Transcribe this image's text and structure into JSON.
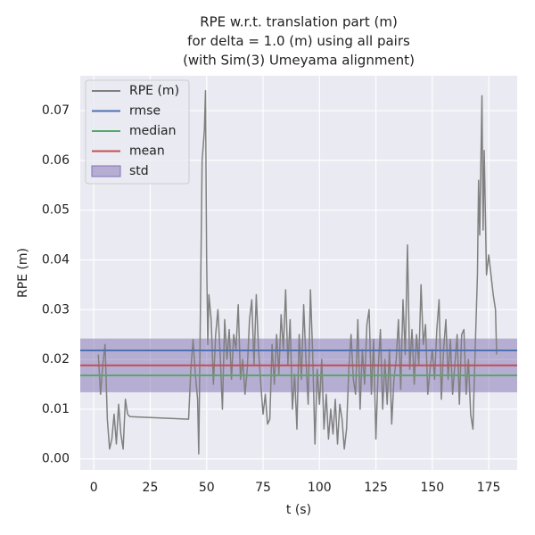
{
  "chart_data": {
    "type": "line",
    "title": [
      "RPE w.r.t. translation part (m)",
      "for delta = 1.0 (m) using all pairs",
      "(with Sim(3) Umeyama alignment)"
    ],
    "xlabel": "t (s)",
    "ylabel": "RPE (m)",
    "xlim": [
      -6,
      187.6
    ],
    "ylim": [
      -0.0022,
      0.077
    ],
    "xticks": [
      0,
      25,
      50,
      75,
      100,
      125,
      150,
      175
    ],
    "yticks": [
      {
        "value": 0,
        "label": "0.00"
      },
      0.01,
      0.02,
      0.03,
      0.04,
      0.05,
      0.06,
      0.07
    ],
    "grid": true,
    "legend": "upper left",
    "series": [
      {
        "name": "RPE (m)",
        "color": "#808080",
        "x": [
          2,
          3,
          4,
          5,
          6,
          7,
          8,
          9,
          10,
          11,
          12,
          13,
          14,
          15,
          16,
          42,
          43,
          44,
          45,
          46,
          46.5,
          47,
          48,
          49,
          49.5,
          50,
          50.5,
          51,
          52,
          53,
          54,
          55,
          56,
          57,
          58,
          59,
          60,
          61,
          62,
          63,
          64,
          65,
          66,
          67,
          68,
          69,
          70,
          71,
          72,
          73,
          74,
          75,
          76,
          77,
          78,
          79,
          80,
          81,
          82,
          83,
          84,
          85,
          86,
          87,
          88,
          89,
          90,
          91,
          92,
          93,
          94,
          95,
          96,
          97,
          98,
          99,
          100,
          101,
          102,
          103,
          104,
          105,
          106,
          107,
          108,
          109,
          110,
          111,
          112,
          113,
          114,
          115,
          116,
          117,
          118,
          119,
          120,
          121,
          122,
          123,
          124,
          125,
          126,
          127,
          128,
          129,
          130,
          131,
          132,
          133,
          134,
          135,
          136,
          137,
          138,
          139,
          140,
          141,
          142,
          143,
          144,
          145,
          146,
          147,
          148,
          149,
          150,
          151,
          152,
          153,
          154,
          155,
          156,
          157,
          158,
          159,
          160,
          161,
          162,
          163,
          164,
          165,
          166,
          167,
          168,
          169,
          170,
          170.5,
          171,
          172,
          172.5,
          173,
          174,
          175,
          176,
          177,
          178,
          178.5
        ],
        "values": [
          0.021,
          0.013,
          0.019,
          0.023,
          0.008,
          0.002,
          0.004,
          0.009,
          0.003,
          0.011,
          0.005,
          0.002,
          0.012,
          0.009,
          0.0085,
          0.008,
          0.018,
          0.024,
          0.017,
          0.012,
          0.001,
          0.02,
          0.06,
          0.066,
          0.074,
          0.04,
          0.023,
          0.033,
          0.028,
          0.015,
          0.025,
          0.03,
          0.021,
          0.01,
          0.028,
          0.02,
          0.026,
          0.016,
          0.025,
          0.022,
          0.031,
          0.016,
          0.02,
          0.013,
          0.018,
          0.028,
          0.032,
          0.019,
          0.033,
          0.022,
          0.015,
          0.009,
          0.013,
          0.007,
          0.008,
          0.023,
          0.015,
          0.025,
          0.017,
          0.029,
          0.022,
          0.034,
          0.019,
          0.028,
          0.01,
          0.017,
          0.006,
          0.025,
          0.016,
          0.031,
          0.02,
          0.011,
          0.034,
          0.021,
          0.003,
          0.018,
          0.011,
          0.02,
          0.006,
          0.013,
          0.004,
          0.01,
          0.005,
          0.012,
          0.003,
          0.011,
          0.008,
          0.002,
          0.006,
          0.018,
          0.025,
          0.016,
          0.013,
          0.028,
          0.01,
          0.022,
          0.015,
          0.027,
          0.03,
          0.013,
          0.024,
          0.004,
          0.018,
          0.026,
          0.01,
          0.02,
          0.011,
          0.022,
          0.007,
          0.016,
          0.02,
          0.028,
          0.014,
          0.032,
          0.021,
          0.043,
          0.018,
          0.026,
          0.015,
          0.025,
          0.019,
          0.035,
          0.023,
          0.027,
          0.013,
          0.018,
          0.022,
          0.016,
          0.026,
          0.032,
          0.012,
          0.022,
          0.028,
          0.016,
          0.024,
          0.013,
          0.019,
          0.025,
          0.011,
          0.025,
          0.026,
          0.013,
          0.02,
          0.009,
          0.006,
          0.022,
          0.037,
          0.056,
          0.045,
          0.073,
          0.046,
          0.062,
          0.037,
          0.041,
          0.037,
          0.033,
          0.03,
          0.021
        ]
      }
    ],
    "lines": [
      {
        "name": "rmse",
        "color": "#4c72b0",
        "value": 0.0218
      },
      {
        "name": "median",
        "color": "#55a868",
        "value": 0.0168
      },
      {
        "name": "mean",
        "color": "#c44e52",
        "value": 0.0188
      }
    ],
    "band": {
      "name": "std",
      "color": "#8172b2",
      "value": 0.0054
    }
  }
}
